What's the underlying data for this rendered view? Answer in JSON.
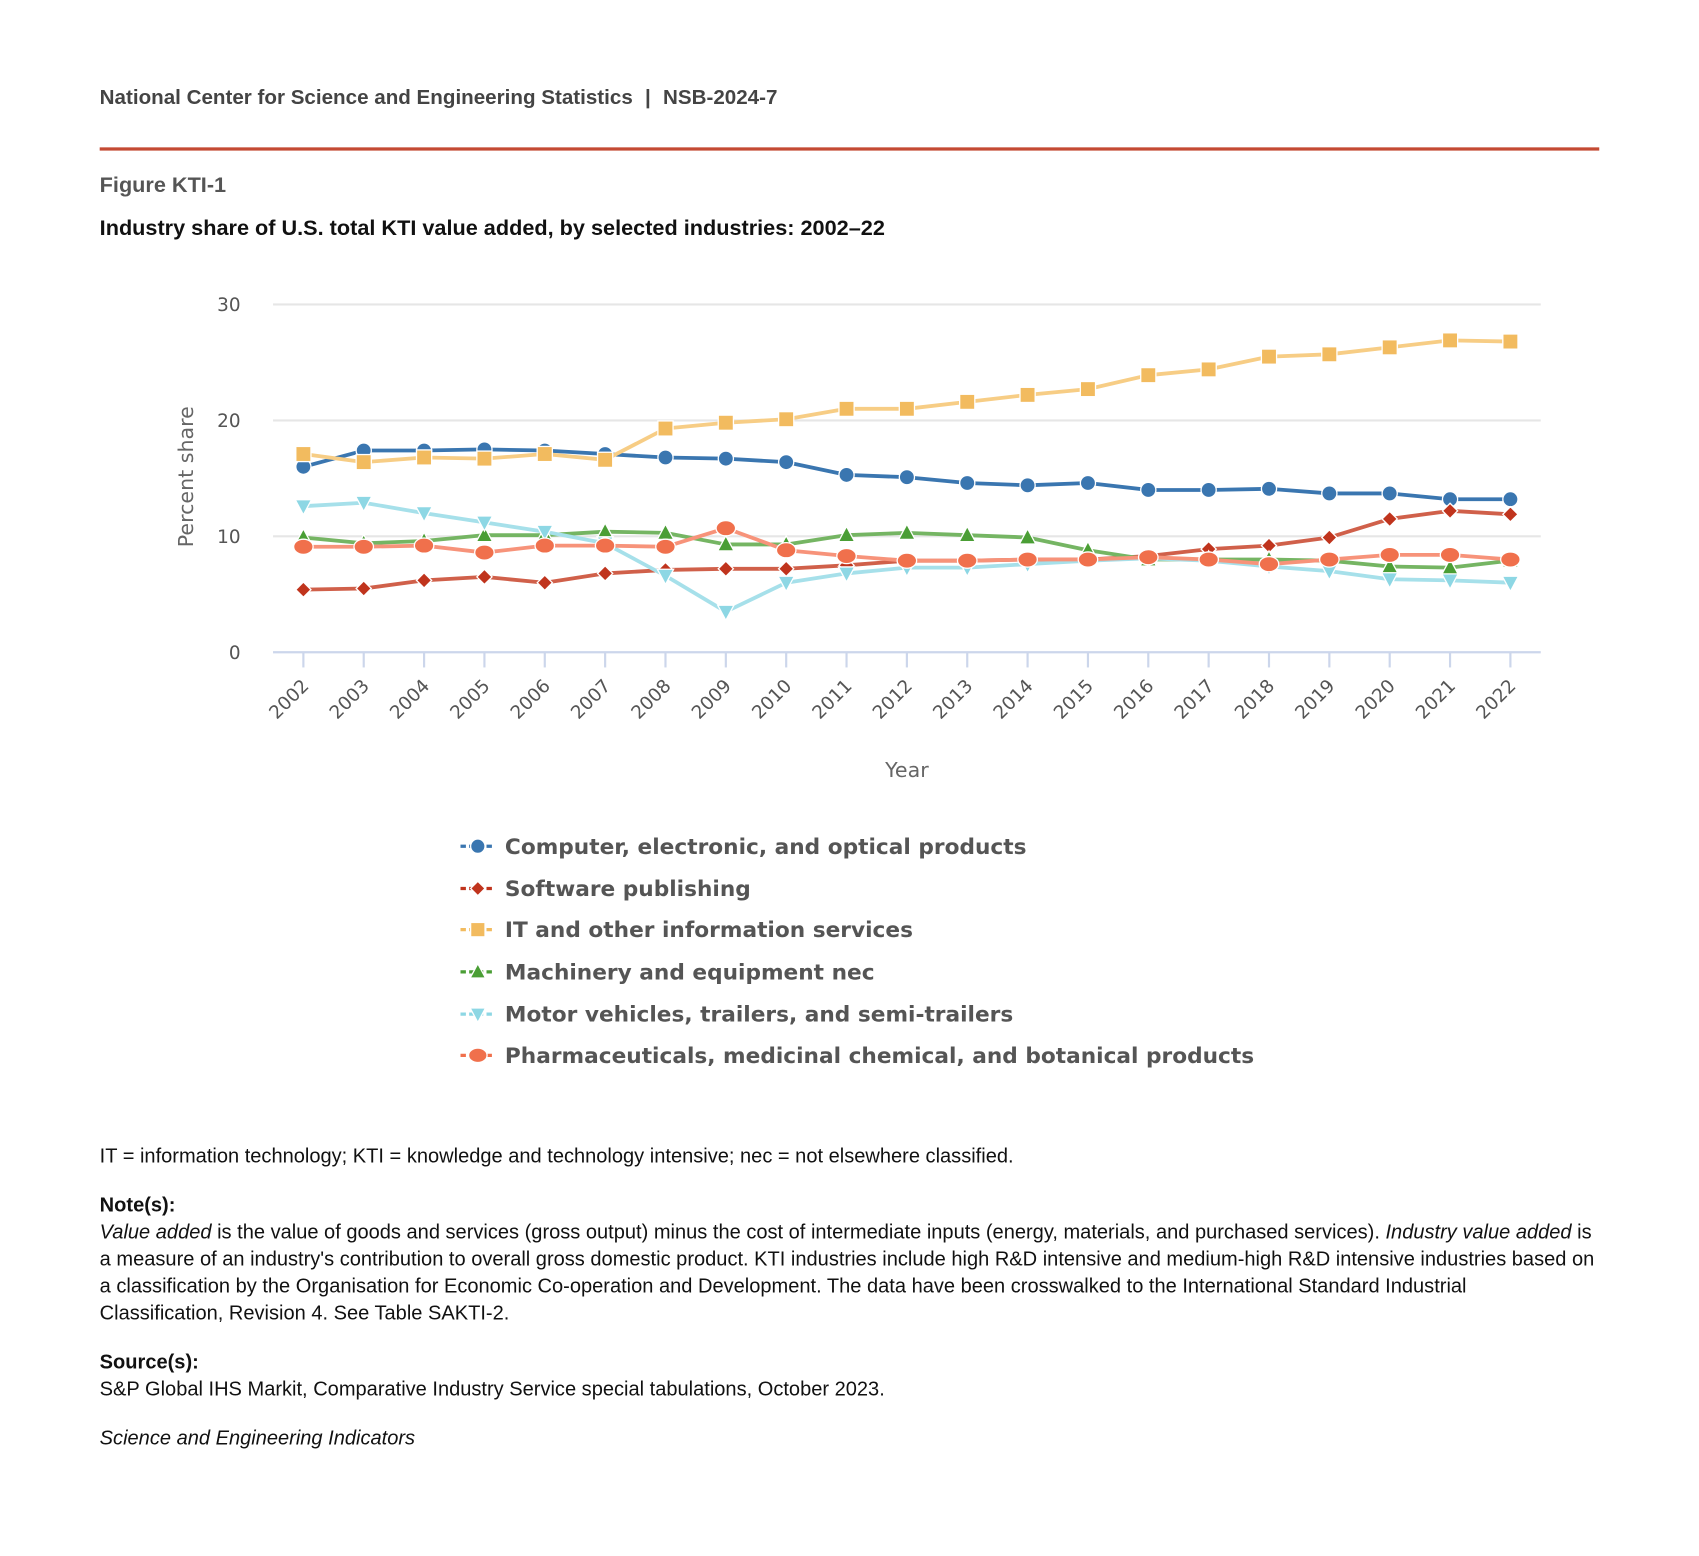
{
  "header": {
    "org": "National Center for Science and Engineering Statistics",
    "separator": "|",
    "report": "NSB-2024-7"
  },
  "figure": {
    "label": "Figure KTI-1",
    "title": "Industry share of U.S. total KTI value added, by selected industries: 2002–22"
  },
  "chart_data": {
    "type": "line",
    "title": "Industry share of U.S. total KTI value added, by selected industries: 2002–22",
    "xlabel": "Year",
    "ylabel": "Percent share",
    "ylim": [
      0,
      30
    ],
    "yticks": [
      "0",
      "10",
      "20",
      "30"
    ],
    "grid": true,
    "legend_position": "bottom",
    "x": [
      "2002",
      "2003",
      "2004",
      "2005",
      "2006",
      "2007",
      "2008",
      "2009",
      "2010",
      "2011",
      "2012",
      "2013",
      "2014",
      "2015",
      "2016",
      "2017",
      "2018",
      "2019",
      "2020",
      "2021",
      "2022"
    ],
    "series": [
      {
        "name": "Computer, electronic, and optical products",
        "marker": "circle",
        "color": "#3a76b0",
        "line_color": "#3a76b0",
        "values": [
          16.0,
          17.4,
          17.4,
          17.5,
          17.4,
          17.1,
          16.8,
          16.7,
          16.4,
          15.3,
          15.1,
          14.6,
          14.4,
          14.6,
          14.0,
          14.0,
          14.1,
          13.7,
          13.7,
          13.2,
          13.2
        ]
      },
      {
        "name": "Software publishing",
        "marker": "diamond",
        "color": "#c0341d",
        "line_color": "#d0604a",
        "values": [
          5.4,
          5.5,
          6.2,
          6.5,
          6.0,
          6.8,
          7.1,
          7.2,
          7.2,
          7.5,
          7.9,
          7.9,
          8.0,
          8.0,
          8.3,
          8.9,
          9.2,
          9.9,
          11.5,
          12.2,
          11.9
        ]
      },
      {
        "name": "IT and other information services",
        "marker": "square",
        "color": "#f2bb5f",
        "line_color": "#f7cd85",
        "values": [
          17.1,
          16.4,
          16.8,
          16.7,
          17.1,
          16.6,
          19.3,
          19.8,
          20.1,
          21.0,
          21.0,
          21.6,
          22.2,
          22.7,
          23.9,
          24.4,
          25.5,
          25.7,
          26.3,
          26.9,
          26.8
        ]
      },
      {
        "name": "Machinery and equipment nec",
        "marker": "triangle-up",
        "color": "#4a9e35",
        "line_color": "#75b563",
        "values": [
          9.9,
          9.4,
          9.6,
          10.1,
          10.1,
          10.4,
          10.3,
          9.3,
          9.3,
          10.1,
          10.3,
          10.1,
          9.9,
          8.8,
          8.0,
          8.0,
          8.0,
          7.9,
          7.4,
          7.3,
          7.9
        ]
      },
      {
        "name": "Motor vehicles, trailers, and semi-trailers",
        "marker": "triangle-down",
        "color": "#8dd7e4",
        "line_color": "#a6e0ea",
        "values": [
          12.6,
          12.9,
          12.0,
          11.2,
          10.4,
          9.4,
          6.6,
          3.5,
          6.0,
          6.8,
          7.3,
          7.3,
          7.6,
          7.9,
          8.1,
          7.9,
          7.4,
          7.0,
          6.3,
          6.2,
          6.0
        ]
      },
      {
        "name": "Pharmaceuticals, medicinal chemical, and botanical products",
        "marker": "ellipse",
        "color": "#f0704c",
        "line_color": "#f7937a",
        "values": [
          9.1,
          9.1,
          9.2,
          8.6,
          9.2,
          9.2,
          9.1,
          10.7,
          8.8,
          8.3,
          7.9,
          7.9,
          8.0,
          8.0,
          8.2,
          8.0,
          7.6,
          8.0,
          8.4,
          8.4,
          8.0
        ]
      }
    ]
  },
  "footnotes": {
    "abbrev": "IT = information technology; KTI = knowledge and technology intensive; nec = not elsewhere classified.",
    "note_heading": "Note(s):",
    "note_term1": "Value added",
    "note_text1": " is the value of goods and services (gross output) minus the cost of intermediate inputs (energy, materials, and purchased services). ",
    "note_term2": "Industry value added",
    "note_text2": " is a measure of an industry's contribution to overall gross domestic product. KTI industries include high R&D intensive and medium-high R&D intensive industries based on a classification by the Organisation for Economic Co-operation and Development. The data have been crosswalked to the International Standard Industrial Classification, Revision 4. See Table SAKTI-2.",
    "source_heading": "Source(s):",
    "source_text": "S&P Global IHS Markit, Comparative Industry Service special tabulations, October 2023.",
    "publication": "Science and Engineering Indicators"
  }
}
